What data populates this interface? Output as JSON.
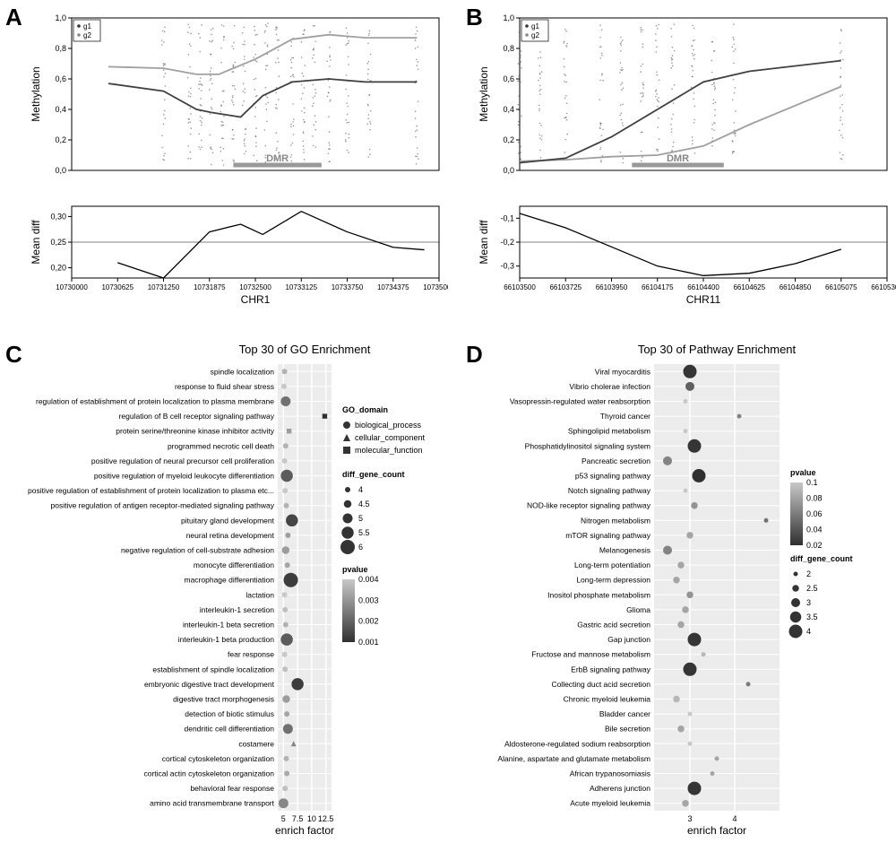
{
  "panelA": {
    "label": "A",
    "top": {
      "ylabel": "Methylation",
      "yticks": [
        0,
        0.2,
        0.4,
        0.6,
        0.8,
        1.0
      ],
      "ytick_labels": [
        "0,0",
        "0,2",
        "0,4",
        "0,6",
        "0,8",
        "1,0"
      ],
      "ylim": [
        0,
        1.0
      ],
      "legend_items": [
        "g1",
        "g2"
      ],
      "g1_line": [
        [
          10730500,
          0.57
        ],
        [
          10731250,
          0.52
        ],
        [
          10731700,
          0.4
        ],
        [
          10731900,
          0.38
        ],
        [
          10732300,
          0.35
        ],
        [
          10732600,
          0.49
        ],
        [
          10733000,
          0.58
        ],
        [
          10733500,
          0.6
        ],
        [
          10734000,
          0.58
        ],
        [
          10734700,
          0.58
        ]
      ],
      "g2_line": [
        [
          10730500,
          0.68
        ],
        [
          10731250,
          0.67
        ],
        [
          10731700,
          0.63
        ],
        [
          10732000,
          0.63
        ],
        [
          10732500,
          0.73
        ],
        [
          10733000,
          0.86
        ],
        [
          10733500,
          0.89
        ],
        [
          10734000,
          0.87
        ],
        [
          10734700,
          0.87
        ]
      ],
      "scatter_x": [
        10731250,
        10731600,
        10731750,
        10731900,
        10732050,
        10732200,
        10732350,
        10732500,
        10732650,
        10732800,
        10733000,
        10733150,
        10733300,
        10733500,
        10733750,
        10734050,
        10734700
      ],
      "dmr": {
        "start": 10732200,
        "end": 10733400,
        "label": "DMR"
      },
      "g1_color": "#404040",
      "g2_color": "#a0a0a0"
    },
    "bottom": {
      "ylabel": "Mean diff",
      "yticks": [
        0.2,
        0.25,
        0.3
      ],
      "ytick_labels": [
        "0,20",
        "0,25",
        "0,30"
      ],
      "ylim": [
        0.18,
        0.32
      ],
      "xlabel": "CHR1",
      "xticks": [
        10730000,
        10730625,
        10731250,
        10731875,
        10732500,
        10733125,
        10733750,
        10734375,
        10735000
      ],
      "line": [
        [
          10730625,
          0.21
        ],
        [
          10731250,
          0.18
        ],
        [
          10731875,
          0.27
        ],
        [
          10732300,
          0.285
        ],
        [
          10732600,
          0.265
        ],
        [
          10733125,
          0.31
        ],
        [
          10733750,
          0.27
        ],
        [
          10734375,
          0.24
        ],
        [
          10734800,
          0.235
        ]
      ]
    }
  },
  "panelB": {
    "label": "B",
    "top": {
      "ylabel": "Methylation",
      "yticks": [
        0,
        0.2,
        0.4,
        0.6,
        0.8,
        1.0
      ],
      "ytick_labels": [
        "0,0",
        "0,2",
        "0,4",
        "0,6",
        "0,8",
        "1,0"
      ],
      "ylim": [
        0,
        1.0
      ],
      "legend_items": [
        "g1",
        "g2"
      ],
      "g1_line": [
        [
          66103500,
          0.06
        ],
        [
          66103725,
          0.07
        ],
        [
          66103950,
          0.09
        ],
        [
          66104175,
          0.1
        ],
        [
          66104400,
          0.16
        ],
        [
          66104625,
          0.3
        ],
        [
          66105075,
          0.55
        ]
      ],
      "g2_line": [
        [
          66103500,
          0.05
        ],
        [
          66103725,
          0.08
        ],
        [
          66103950,
          0.22
        ],
        [
          66104175,
          0.4
        ],
        [
          66104400,
          0.58
        ],
        [
          66104625,
          0.65
        ],
        [
          66105075,
          0.72
        ]
      ],
      "scatter_x": [
        66103500,
        66103600,
        66103725,
        66103900,
        66104000,
        66104100,
        66104175,
        66104250,
        66104350,
        66104450,
        66104550,
        66105075
      ],
      "dmr": {
        "start": 66104050,
        "end": 66104500,
        "label": "DMR"
      },
      "g1_color": "#a0a0a0",
      "g2_color": "#404040"
    },
    "bottom": {
      "ylabel": "Mean diff",
      "yticks": [
        -0.3,
        -0.2,
        -0.1
      ],
      "ytick_labels": [
        "-0,3",
        "-0,2",
        "-0,1"
      ],
      "ylim": [
        -0.35,
        -0.05
      ],
      "xlabel": "CHR11",
      "xticks": [
        66103500,
        66103725,
        66103950,
        66104175,
        66104400,
        66104625,
        66104850,
        66105075,
        66105300
      ],
      "line": [
        [
          66103500,
          -0.08
        ],
        [
          66103725,
          -0.14
        ],
        [
          66103950,
          -0.22
        ],
        [
          66104175,
          -0.3
        ],
        [
          66104400,
          -0.34
        ],
        [
          66104625,
          -0.33
        ],
        [
          66104850,
          -0.29
        ],
        [
          66105075,
          -0.23
        ]
      ]
    }
  },
  "panelC": {
    "label": "C",
    "title": "Top 30 of GO Enrichment",
    "xlabel": "enrich factor",
    "xticks": [
      5.0,
      7.5,
      10.0,
      12.5
    ],
    "xlim": [
      4,
      13.5
    ],
    "items": [
      {
        "name": "spindle localization",
        "x": 5.2,
        "n": 4,
        "p": 0.0035,
        "d": "bp"
      },
      {
        "name": "response to fluid shear stress",
        "x": 5.1,
        "n": 4,
        "p": 0.004,
        "d": "bp"
      },
      {
        "name": "regulation of establishment of protein localization to plasma membrane",
        "x": 5.4,
        "n": 5,
        "p": 0.002,
        "d": "bp"
      },
      {
        "name": "regulation of B cell receptor signaling pathway",
        "x": 12.3,
        "n": 4,
        "p": 0.0005,
        "d": "mf"
      },
      {
        "name": "protein serine/threonine kinase inhibitor activity",
        "x": 6.0,
        "n": 4,
        "p": 0.003,
        "d": "mf"
      },
      {
        "name": "programmed necrotic cell death",
        "x": 5.4,
        "n": 4,
        "p": 0.0035,
        "d": "bp"
      },
      {
        "name": "positive regulation of neural precursor cell proliferation",
        "x": 5.2,
        "n": 4,
        "p": 0.004,
        "d": "bp"
      },
      {
        "name": "positive regulation of myeloid leukocyte differentiation",
        "x": 5.6,
        "n": 5.5,
        "p": 0.0015,
        "d": "bp"
      },
      {
        "name": "positive regulation of establishment of protein localization to plasma etc...",
        "x": 5.3,
        "n": 4,
        "p": 0.004,
        "d": "bp"
      },
      {
        "name": "positive regulation of antigen receptor-mediated signaling pathway",
        "x": 5.5,
        "n": 4,
        "p": 0.0035,
        "d": "bp"
      },
      {
        "name": "pituitary gland development",
        "x": 6.5,
        "n": 5.5,
        "p": 0.001,
        "d": "bp"
      },
      {
        "name": "neural retina development",
        "x": 5.8,
        "n": 4,
        "p": 0.003,
        "d": "bp"
      },
      {
        "name": "negative regulation of cell-substrate adhesion",
        "x": 5.4,
        "n": 4.5,
        "p": 0.003,
        "d": "bp"
      },
      {
        "name": "monocyte differentiation",
        "x": 5.7,
        "n": 4,
        "p": 0.0032,
        "d": "bp"
      },
      {
        "name": "macrophage differentiation",
        "x": 6.3,
        "n": 6,
        "p": 0.0008,
        "d": "bp"
      },
      {
        "name": "lactation",
        "x": 5.2,
        "n": 4,
        "p": 0.004,
        "d": "bp"
      },
      {
        "name": "interleukin-1 secretion",
        "x": 5.3,
        "n": 4,
        "p": 0.0038,
        "d": "bp"
      },
      {
        "name": "interleukin-1 beta secretion",
        "x": 5.4,
        "n": 4,
        "p": 0.0035,
        "d": "bp"
      },
      {
        "name": "interleukin-1 beta production",
        "x": 5.6,
        "n": 5.5,
        "p": 0.0015,
        "d": "bp"
      },
      {
        "name": "fear response",
        "x": 5.2,
        "n": 4,
        "p": 0.004,
        "d": "bp"
      },
      {
        "name": "establishment of spindle localization",
        "x": 5.3,
        "n": 4,
        "p": 0.0038,
        "d": "bp"
      },
      {
        "name": "embryonic digestive tract development",
        "x": 7.5,
        "n": 5.5,
        "p": 0.0008,
        "d": "bp"
      },
      {
        "name": "digestive tract morphogenesis",
        "x": 5.5,
        "n": 4.5,
        "p": 0.003,
        "d": "bp"
      },
      {
        "name": "detection of biotic stimulus",
        "x": 5.6,
        "n": 4,
        "p": 0.0032,
        "d": "bp"
      },
      {
        "name": "dendritic cell differentiation",
        "x": 5.8,
        "n": 5,
        "p": 0.002,
        "d": "bp"
      },
      {
        "name": "costamere",
        "x": 6.8,
        "n": 4,
        "p": 0.0025,
        "d": "cc"
      },
      {
        "name": "cortical cytoskeleton organization",
        "x": 5.5,
        "n": 4,
        "p": 0.0035,
        "d": "bp"
      },
      {
        "name": "cortical actin cytoskeleton organization",
        "x": 5.6,
        "n": 4,
        "p": 0.0033,
        "d": "bp"
      },
      {
        "name": "behavioral fear response",
        "x": 5.3,
        "n": 4,
        "p": 0.0038,
        "d": "bp"
      },
      {
        "name": "amino acid transmembrane transport",
        "x": 5.0,
        "n": 5,
        "p": 0.0025,
        "d": "bp"
      }
    ],
    "legend": {
      "domain_title": "GO_domain",
      "domains": [
        "biological_process",
        "cellular_component",
        "molecular_function"
      ],
      "count_title": "diff_gene_count",
      "counts": [
        4.0,
        4.5,
        5.0,
        5.5,
        6.0
      ],
      "pvalue_title": "pvalue",
      "pticks": [
        0.004,
        0.003,
        0.002,
        0.001
      ],
      "plow": "#c8c8c8",
      "phigh": "#303030"
    }
  },
  "panelD": {
    "label": "D",
    "title": "Top 30 of Pathway Enrichment",
    "xlabel": "enrich factor",
    "xticks": [
      3,
      4
    ],
    "xlim": [
      2.2,
      5.0
    ],
    "items": [
      {
        "name": "Viral myocarditis",
        "x": 3.0,
        "n": 4,
        "p": 0.015
      },
      {
        "name": "Vibrio cholerae infection",
        "x": 3.0,
        "n": 3,
        "p": 0.04
      },
      {
        "name": "Vasopressin-regulated water reabsorption",
        "x": 2.9,
        "n": 2,
        "p": 0.1
      },
      {
        "name": "Thyroid cancer",
        "x": 4.1,
        "n": 2,
        "p": 0.06
      },
      {
        "name": "Sphingolipid metabolism",
        "x": 2.9,
        "n": 2,
        "p": 0.1
      },
      {
        "name": "Phosphatidylinositol signaling system",
        "x": 3.1,
        "n": 4,
        "p": 0.015
      },
      {
        "name": "Pancreatic secretion",
        "x": 2.5,
        "n": 3,
        "p": 0.06
      },
      {
        "name": "p53 signaling pathway",
        "x": 3.2,
        "n": 4,
        "p": 0.012
      },
      {
        "name": "Notch signaling pathway",
        "x": 2.9,
        "n": 2,
        "p": 0.1
      },
      {
        "name": "NOD-like receptor signaling pathway",
        "x": 3.1,
        "n": 2.5,
        "p": 0.07
      },
      {
        "name": "Nitrogen metabolism",
        "x": 4.7,
        "n": 2,
        "p": 0.05
      },
      {
        "name": "mTOR signaling pathway",
        "x": 3.0,
        "n": 2.5,
        "p": 0.08
      },
      {
        "name": "Melanogenesis",
        "x": 2.5,
        "n": 3,
        "p": 0.06
      },
      {
        "name": "Long-term potentiation",
        "x": 2.8,
        "n": 2.5,
        "p": 0.08
      },
      {
        "name": "Long-term depression",
        "x": 2.7,
        "n": 2.5,
        "p": 0.08
      },
      {
        "name": "Inositol phosphate metabolism",
        "x": 3.0,
        "n": 2.5,
        "p": 0.07
      },
      {
        "name": "Glioma",
        "x": 2.9,
        "n": 2.5,
        "p": 0.08
      },
      {
        "name": "Gastric acid secretion",
        "x": 2.8,
        "n": 2.5,
        "p": 0.08
      },
      {
        "name": "Gap junction",
        "x": 3.1,
        "n": 4,
        "p": 0.015
      },
      {
        "name": "Fructose and mannose metabolism",
        "x": 3.3,
        "n": 2,
        "p": 0.09
      },
      {
        "name": "ErbB signaling pathway",
        "x": 3.0,
        "n": 4,
        "p": 0.015
      },
      {
        "name": "Collecting duct acid secretion",
        "x": 4.3,
        "n": 2,
        "p": 0.055
      },
      {
        "name": "Chronic myeloid leukemia",
        "x": 2.7,
        "n": 2.5,
        "p": 0.09
      },
      {
        "name": "Bladder cancer",
        "x": 3.0,
        "n": 2,
        "p": 0.1
      },
      {
        "name": "Bile secretion",
        "x": 2.8,
        "n": 2.5,
        "p": 0.08
      },
      {
        "name": "Aldosterone-regulated sodium reabsorption",
        "x": 3.0,
        "n": 2,
        "p": 0.1
      },
      {
        "name": "Alanine, aspartate and glutamate metabolism",
        "x": 3.6,
        "n": 2,
        "p": 0.08
      },
      {
        "name": "African trypanosomiasis",
        "x": 3.5,
        "n": 2,
        "p": 0.08
      },
      {
        "name": "Adherens junction",
        "x": 3.1,
        "n": 4,
        "p": 0.015
      },
      {
        "name": "Acute myeloid leukemia",
        "x": 2.9,
        "n": 2.5,
        "p": 0.08
      }
    ],
    "legend": {
      "pvalue_title": "pvalue",
      "pticks": [
        0.1,
        0.08,
        0.06,
        0.04,
        0.02
      ],
      "plow": "#c8c8c8",
      "phigh": "#303030",
      "count_title": "diff_gene_count",
      "counts": [
        2.0,
        2.5,
        3.0,
        3.5,
        4.0
      ]
    }
  }
}
